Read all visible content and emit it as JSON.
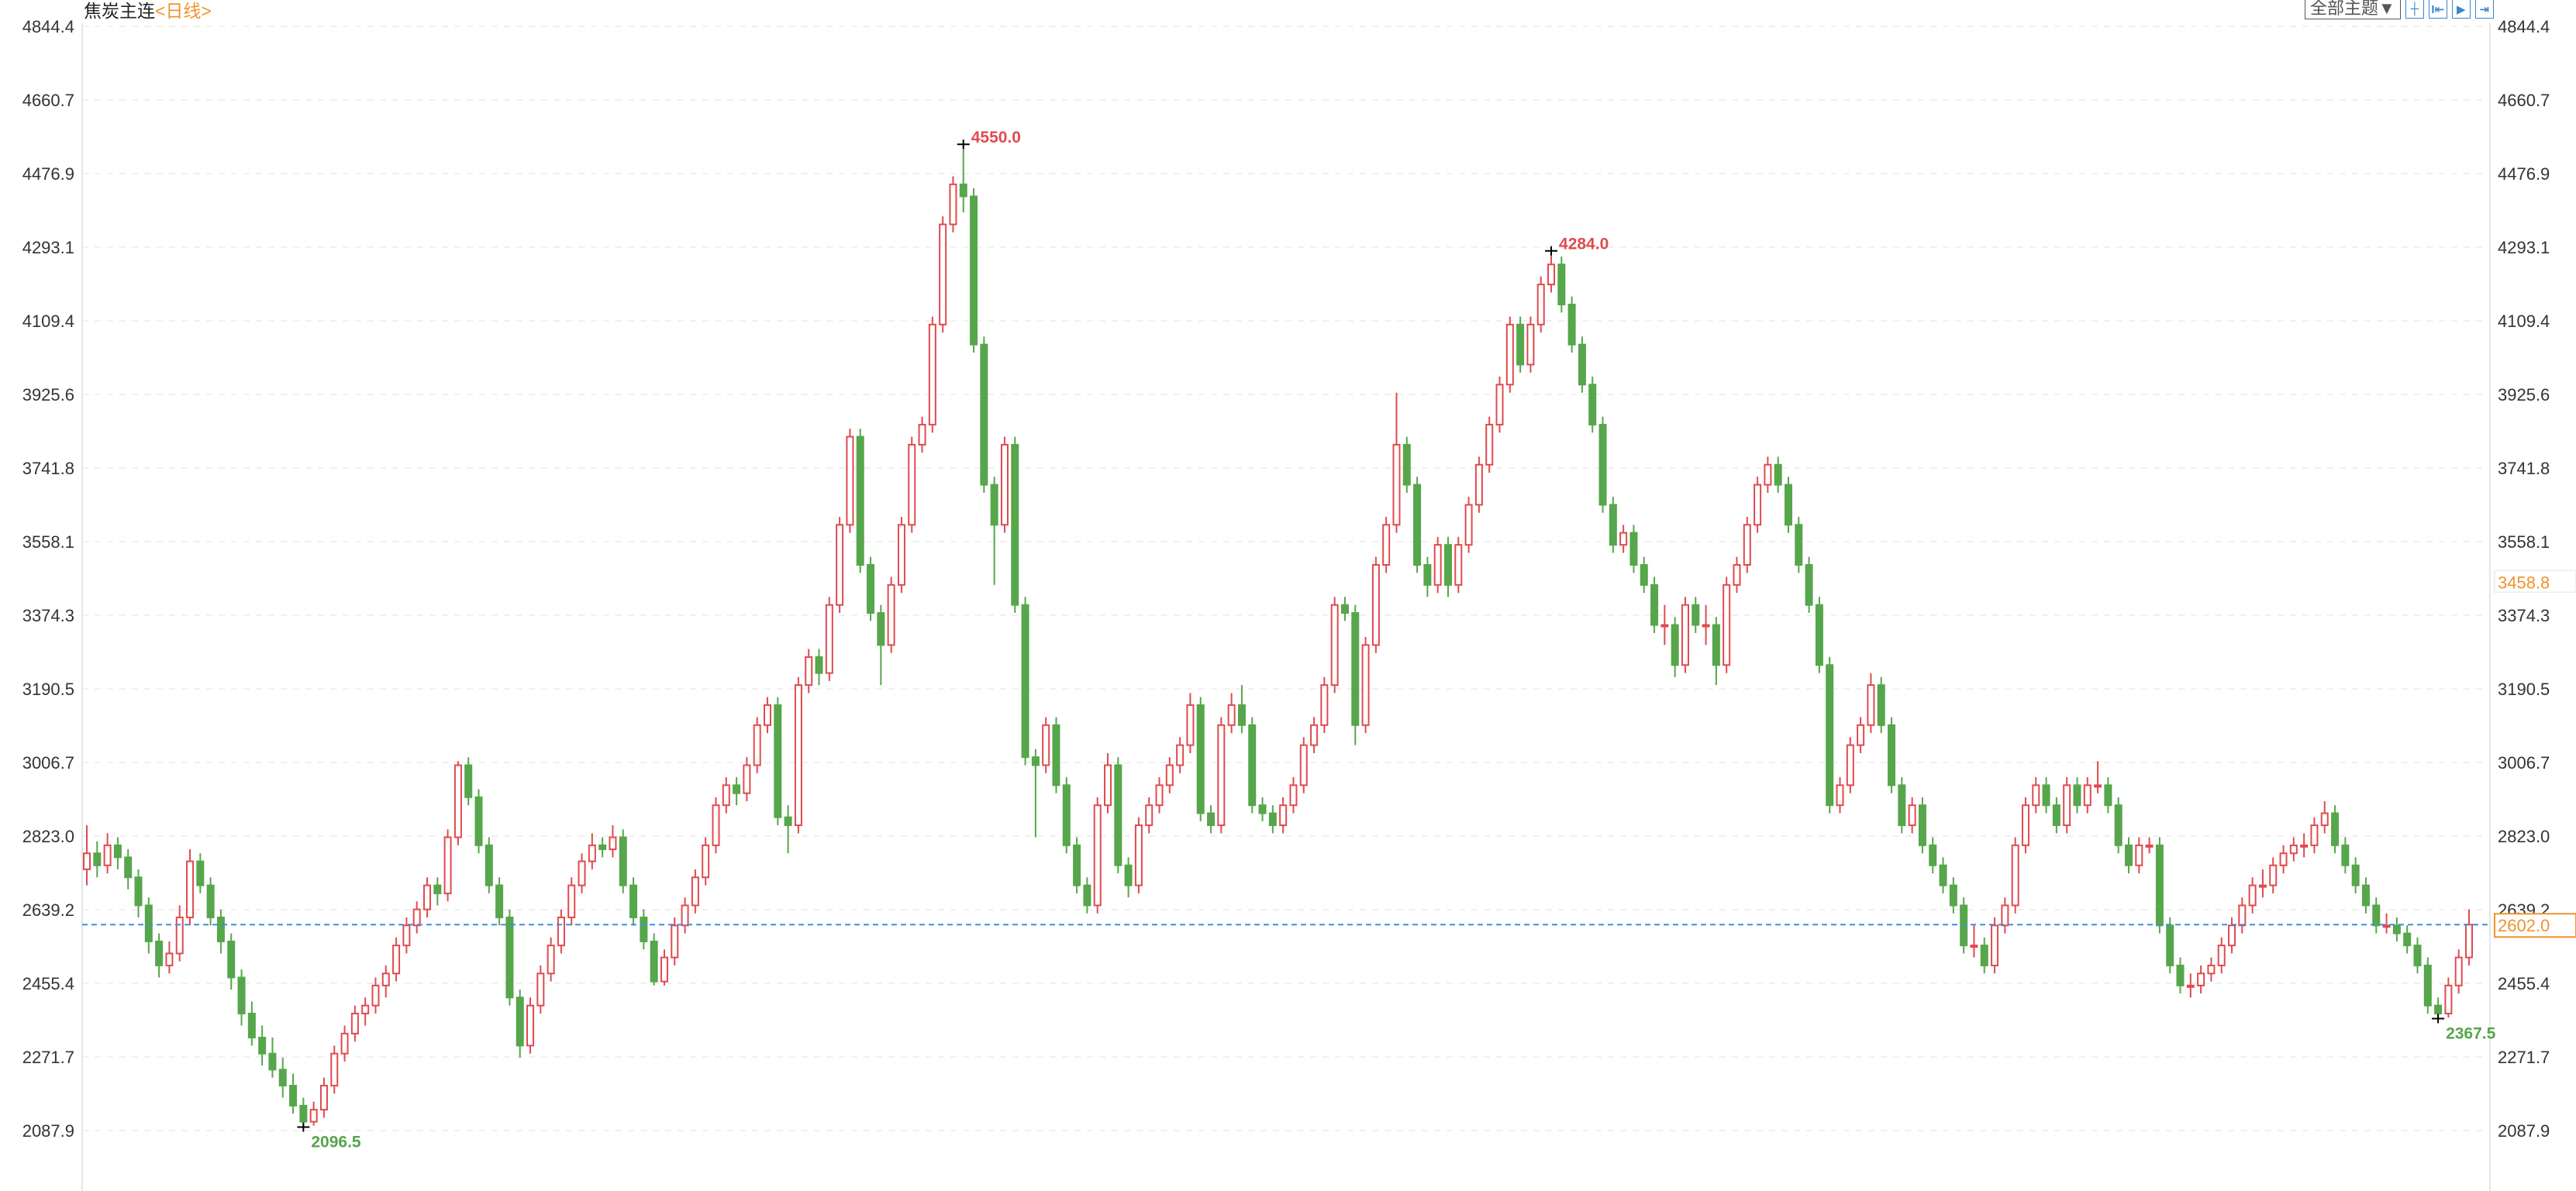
{
  "header": {
    "instrument": "焦炭主连",
    "period": "<日线>"
  },
  "toolbar": {
    "theme_label": "全部主题▼",
    "icons": [
      "crosshair-icon",
      "zoom-range-icon",
      "play-forward-icon",
      "jump-to-end-icon"
    ]
  },
  "colors": {
    "up": "#e04a4f",
    "down": "#56a64b",
    "last_price_line": "#3a8ee6",
    "last_price_label": "#f0932b",
    "high_label": "#e04a4f",
    "low_label": "#56a64b",
    "axis_text": "#333333",
    "crosshair_label": "#f0932b"
  },
  "chart_data": {
    "type": "candlestick",
    "title": "焦炭主连",
    "period": "日线",
    "ylim": [
      2010,
      4844.4
    ],
    "grid": true,
    "y_ticks": [
      "4844.4",
      "4660.7",
      "4476.9",
      "4293.1",
      "4109.4",
      "3925.6",
      "3741.8",
      "3558.1",
      "3374.3",
      "3190.5",
      "3006.7",
      "2823.0",
      "2639.2",
      "2455.4",
      "2271.7",
      "2087.9"
    ],
    "last_price": 2602.0,
    "last_price_label": "2602.0",
    "crosshair_value": 3458.8,
    "crosshair_label": "3458.8",
    "annotations": {
      "max_high": "4550.0",
      "second_high": "4284.0",
      "min_low": "2096.5",
      "recent_low": "2367.5"
    },
    "ohlc": [
      [
        2740,
        2850,
        2700,
        2780
      ],
      [
        2780,
        2810,
        2720,
        2750
      ],
      [
        2750,
        2830,
        2730,
        2800
      ],
      [
        2800,
        2820,
        2740,
        2770
      ],
      [
        2770,
        2790,
        2690,
        2720
      ],
      [
        2720,
        2740,
        2620,
        2650
      ],
      [
        2650,
        2670,
        2530,
        2560
      ],
      [
        2560,
        2580,
        2470,
        2500
      ],
      [
        2500,
        2560,
        2480,
        2530
      ],
      [
        2530,
        2650,
        2510,
        2620
      ],
      [
        2620,
        2790,
        2600,
        2760
      ],
      [
        2760,
        2780,
        2680,
        2700
      ],
      [
        2700,
        2720,
        2600,
        2620
      ],
      [
        2620,
        2640,
        2530,
        2560
      ],
      [
        2560,
        2580,
        2440,
        2470
      ],
      [
        2470,
        2490,
        2350,
        2380
      ],
      [
        2380,
        2410,
        2300,
        2320
      ],
      [
        2320,
        2350,
        2250,
        2280
      ],
      [
        2280,
        2320,
        2220,
        2240
      ],
      [
        2240,
        2270,
        2170,
        2200
      ],
      [
        2200,
        2230,
        2130,
        2150
      ],
      [
        2150,
        2170,
        2096.5,
        2110
      ],
      [
        2110,
        2160,
        2100,
        2140
      ],
      [
        2140,
        2220,
        2120,
        2200
      ],
      [
        2200,
        2300,
        2180,
        2280
      ],
      [
        2280,
        2350,
        2260,
        2330
      ],
      [
        2330,
        2400,
        2310,
        2380
      ],
      [
        2380,
        2420,
        2350,
        2400
      ],
      [
        2400,
        2470,
        2380,
        2450
      ],
      [
        2450,
        2500,
        2420,
        2480
      ],
      [
        2480,
        2570,
        2460,
        2550
      ],
      [
        2550,
        2620,
        2530,
        2600
      ],
      [
        2600,
        2660,
        2580,
        2640
      ],
      [
        2640,
        2720,
        2620,
        2700
      ],
      [
        2700,
        2720,
        2650,
        2680
      ],
      [
        2680,
        2840,
        2660,
        2820
      ],
      [
        2820,
        3010,
        2800,
        3000
      ],
      [
        3000,
        3020,
        2900,
        2920
      ],
      [
        2920,
        2940,
        2780,
        2800
      ],
      [
        2800,
        2820,
        2680,
        2700
      ],
      [
        2700,
        2720,
        2600,
        2620
      ],
      [
        2620,
        2640,
        2400,
        2420
      ],
      [
        2420,
        2440,
        2270,
        2300
      ],
      [
        2300,
        2420,
        2280,
        2400
      ],
      [
        2400,
        2500,
        2380,
        2480
      ],
      [
        2480,
        2570,
        2460,
        2550
      ],
      [
        2550,
        2640,
        2530,
        2620
      ],
      [
        2620,
        2720,
        2600,
        2700
      ],
      [
        2700,
        2780,
        2680,
        2760
      ],
      [
        2760,
        2830,
        2740,
        2800
      ],
      [
        2800,
        2820,
        2770,
        2790
      ],
      [
        2790,
        2850,
        2770,
        2820
      ],
      [
        2820,
        2840,
        2680,
        2700
      ],
      [
        2700,
        2720,
        2600,
        2620
      ],
      [
        2620,
        2640,
        2540,
        2560
      ],
      [
        2560,
        2580,
        2450,
        2460
      ],
      [
        2460,
        2540,
        2450,
        2520
      ],
      [
        2520,
        2620,
        2500,
        2600
      ],
      [
        2600,
        2670,
        2580,
        2650
      ],
      [
        2650,
        2740,
        2630,
        2720
      ],
      [
        2720,
        2820,
        2700,
        2800
      ],
      [
        2800,
        2920,
        2780,
        2900
      ],
      [
        2900,
        2970,
        2880,
        2950
      ],
      [
        2950,
        2970,
        2900,
        2930
      ],
      [
        2930,
        3020,
        2910,
        3000
      ],
      [
        3000,
        3120,
        2980,
        3100
      ],
      [
        3100,
        3170,
        3080,
        3150
      ],
      [
        3150,
        3170,
        2850,
        2870
      ],
      [
        2870,
        2900,
        2780,
        2850
      ],
      [
        2850,
        3220,
        2830,
        3200
      ],
      [
        3200,
        3290,
        3180,
        3270
      ],
      [
        3270,
        3290,
        3200,
        3230
      ],
      [
        3230,
        3420,
        3210,
        3400
      ],
      [
        3400,
        3620,
        3380,
        3600
      ],
      [
        3600,
        3840,
        3580,
        3820
      ],
      [
        3820,
        3840,
        3480,
        3500
      ],
      [
        3500,
        3520,
        3360,
        3380
      ],
      [
        3380,
        3400,
        3200,
        3300
      ],
      [
        3300,
        3470,
        3280,
        3450
      ],
      [
        3450,
        3620,
        3430,
        3600
      ],
      [
        3600,
        3820,
        3580,
        3800
      ],
      [
        3800,
        3870,
        3780,
        3850
      ],
      [
        3850,
        4120,
        3830,
        4100
      ],
      [
        4100,
        4370,
        4080,
        4350
      ],
      [
        4350,
        4470,
        4330,
        4450
      ],
      [
        4450,
        4550,
        4380,
        4420
      ],
      [
        4420,
        4440,
        4030,
        4050
      ],
      [
        4050,
        4070,
        3680,
        3700
      ],
      [
        3700,
        3720,
        3450,
        3600
      ],
      [
        3600,
        3820,
        3580,
        3800
      ],
      [
        3800,
        3820,
        3380,
        3400
      ],
      [
        3400,
        3420,
        3000,
        3020
      ],
      [
        3020,
        3040,
        2820,
        3000
      ],
      [
        3000,
        3120,
        2980,
        3100
      ],
      [
        3100,
        3120,
        2930,
        2950
      ],
      [
        2950,
        2970,
        2780,
        2800
      ],
      [
        2800,
        2820,
        2680,
        2700
      ],
      [
        2700,
        2720,
        2630,
        2650
      ],
      [
        2650,
        2920,
        2630,
        2900
      ],
      [
        2900,
        3030,
        2880,
        3000
      ],
      [
        3000,
        3020,
        2730,
        2750
      ],
      [
        2750,
        2770,
        2670,
        2700
      ],
      [
        2700,
        2870,
        2680,
        2850
      ],
      [
        2850,
        2920,
        2830,
        2900
      ],
      [
        2900,
        2970,
        2880,
        2950
      ],
      [
        2950,
        3020,
        2930,
        3000
      ],
      [
        3000,
        3070,
        2980,
        3050
      ],
      [
        3050,
        3180,
        3030,
        3150
      ],
      [
        3150,
        3170,
        2860,
        2880
      ],
      [
        2880,
        2900,
        2830,
        2850
      ],
      [
        2850,
        3120,
        2830,
        3100
      ],
      [
        3100,
        3180,
        3080,
        3150
      ],
      [
        3150,
        3200,
        3080,
        3100
      ],
      [
        3100,
        3120,
        2880,
        2900
      ],
      [
        2900,
        2920,
        2860,
        2880
      ],
      [
        2880,
        2900,
        2830,
        2850
      ],
      [
        2850,
        2920,
        2830,
        2900
      ],
      [
        2900,
        2970,
        2880,
        2950
      ],
      [
        2950,
        3070,
        2930,
        3050
      ],
      [
        3050,
        3120,
        3030,
        3100
      ],
      [
        3100,
        3220,
        3080,
        3200
      ],
      [
        3200,
        3420,
        3180,
        3400
      ],
      [
        3400,
        3420,
        3360,
        3380
      ],
      [
        3380,
        3400,
        3050,
        3100
      ],
      [
        3100,
        3320,
        3080,
        3300
      ],
      [
        3300,
        3520,
        3280,
        3500
      ],
      [
        3500,
        3620,
        3480,
        3600
      ],
      [
        3600,
        3930,
        3580,
        3800
      ],
      [
        3800,
        3820,
        3680,
        3700
      ],
      [
        3700,
        3720,
        3480,
        3500
      ],
      [
        3500,
        3520,
        3420,
        3450
      ],
      [
        3450,
        3570,
        3430,
        3550
      ],
      [
        3550,
        3570,
        3420,
        3450
      ],
      [
        3450,
        3570,
        3430,
        3550
      ],
      [
        3550,
        3670,
        3530,
        3650
      ],
      [
        3650,
        3770,
        3630,
        3750
      ],
      [
        3750,
        3870,
        3730,
        3850
      ],
      [
        3850,
        3970,
        3830,
        3950
      ],
      [
        3950,
        4120,
        3930,
        4100
      ],
      [
        4100,
        4120,
        3980,
        4000
      ],
      [
        4000,
        4120,
        3980,
        4100
      ],
      [
        4100,
        4220,
        4080,
        4200
      ],
      [
        4200,
        4284,
        4180,
        4250
      ],
      [
        4250,
        4270,
        4130,
        4150
      ],
      [
        4150,
        4170,
        4030,
        4050
      ],
      [
        4050,
        4070,
        3930,
        3950
      ],
      [
        3950,
        3970,
        3830,
        3850
      ],
      [
        3850,
        3870,
        3630,
        3650
      ],
      [
        3650,
        3670,
        3530,
        3550
      ],
      [
        3550,
        3600,
        3530,
        3580
      ],
      [
        3580,
        3600,
        3480,
        3500
      ],
      [
        3500,
        3520,
        3430,
        3450
      ],
      [
        3450,
        3470,
        3330,
        3350
      ],
      [
        3350,
        3400,
        3300,
        3350
      ],
      [
        3350,
        3370,
        3220,
        3250
      ],
      [
        3250,
        3420,
        3230,
        3400
      ],
      [
        3400,
        3420,
        3330,
        3350
      ],
      [
        3350,
        3400,
        3300,
        3350
      ],
      [
        3350,
        3370,
        3200,
        3250
      ],
      [
        3250,
        3470,
        3230,
        3450
      ],
      [
        3450,
        3520,
        3430,
        3500
      ],
      [
        3500,
        3620,
        3480,
        3600
      ],
      [
        3600,
        3720,
        3580,
        3700
      ],
      [
        3700,
        3770,
        3680,
        3750
      ],
      [
        3750,
        3770,
        3680,
        3700
      ],
      [
        3700,
        3720,
        3580,
        3600
      ],
      [
        3600,
        3620,
        3480,
        3500
      ],
      [
        3500,
        3520,
        3380,
        3400
      ],
      [
        3400,
        3420,
        3230,
        3250
      ],
      [
        3250,
        3270,
        2880,
        2900
      ],
      [
        2900,
        2970,
        2880,
        2950
      ],
      [
        2950,
        3070,
        2930,
        3050
      ],
      [
        3050,
        3120,
        3030,
        3100
      ],
      [
        3100,
        3230,
        3080,
        3200
      ],
      [
        3200,
        3220,
        3080,
        3100
      ],
      [
        3100,
        3120,
        2930,
        2950
      ],
      [
        2950,
        2970,
        2830,
        2850
      ],
      [
        2850,
        2920,
        2830,
        2900
      ],
      [
        2900,
        2920,
        2780,
        2800
      ],
      [
        2800,
        2820,
        2730,
        2750
      ],
      [
        2750,
        2770,
        2680,
        2700
      ],
      [
        2700,
        2720,
        2630,
        2650
      ],
      [
        2650,
        2670,
        2530,
        2550
      ],
      [
        2550,
        2600,
        2520,
        2550
      ],
      [
        2550,
        2570,
        2480,
        2500
      ],
      [
        2500,
        2620,
        2480,
        2600
      ],
      [
        2600,
        2670,
        2580,
        2650
      ],
      [
        2650,
        2820,
        2630,
        2800
      ],
      [
        2800,
        2920,
        2780,
        2900
      ],
      [
        2900,
        2970,
        2880,
        2950
      ],
      [
        2950,
        2970,
        2880,
        2900
      ],
      [
        2900,
        2920,
        2830,
        2850
      ],
      [
        2850,
        2970,
        2830,
        2950
      ],
      [
        2950,
        2970,
        2880,
        2900
      ],
      [
        2900,
        2970,
        2880,
        2950
      ],
      [
        2950,
        3010,
        2930,
        2950
      ],
      [
        2950,
        2970,
        2880,
        2900
      ],
      [
        2900,
        2920,
        2780,
        2800
      ],
      [
        2800,
        2820,
        2730,
        2750
      ],
      [
        2750,
        2820,
        2730,
        2800
      ],
      [
        2800,
        2820,
        2780,
        2800
      ],
      [
        2800,
        2820,
        2580,
        2600
      ],
      [
        2600,
        2620,
        2480,
        2500
      ],
      [
        2500,
        2520,
        2430,
        2450
      ],
      [
        2450,
        2480,
        2420,
        2450
      ],
      [
        2450,
        2500,
        2430,
        2480
      ],
      [
        2480,
        2520,
        2460,
        2500
      ],
      [
        2500,
        2570,
        2480,
        2550
      ],
      [
        2550,
        2620,
        2530,
        2600
      ],
      [
        2600,
        2670,
        2580,
        2650
      ],
      [
        2650,
        2720,
        2630,
        2700
      ],
      [
        2700,
        2740,
        2670,
        2700
      ],
      [
        2700,
        2770,
        2680,
        2750
      ],
      [
        2750,
        2800,
        2730,
        2780
      ],
      [
        2780,
        2820,
        2760,
        2800
      ],
      [
        2800,
        2830,
        2770,
        2800
      ],
      [
        2800,
        2870,
        2780,
        2850
      ],
      [
        2850,
        2910,
        2830,
        2880
      ],
      [
        2880,
        2900,
        2780,
        2800
      ],
      [
        2800,
        2820,
        2730,
        2750
      ],
      [
        2750,
        2770,
        2680,
        2700
      ],
      [
        2700,
        2720,
        2630,
        2650
      ],
      [
        2650,
        2670,
        2580,
        2600
      ],
      [
        2600,
        2630,
        2580,
        2600
      ],
      [
        2600,
        2620,
        2560,
        2580
      ],
      [
        2580,
        2600,
        2530,
        2550
      ],
      [
        2550,
        2570,
        2480,
        2500
      ],
      [
        2500,
        2520,
        2380,
        2400
      ],
      [
        2400,
        2420,
        2367.5,
        2380
      ],
      [
        2380,
        2470,
        2370,
        2450
      ],
      [
        2450,
        2540,
        2430,
        2520
      ],
      [
        2520,
        2640,
        2500,
        2602
      ]
    ]
  }
}
